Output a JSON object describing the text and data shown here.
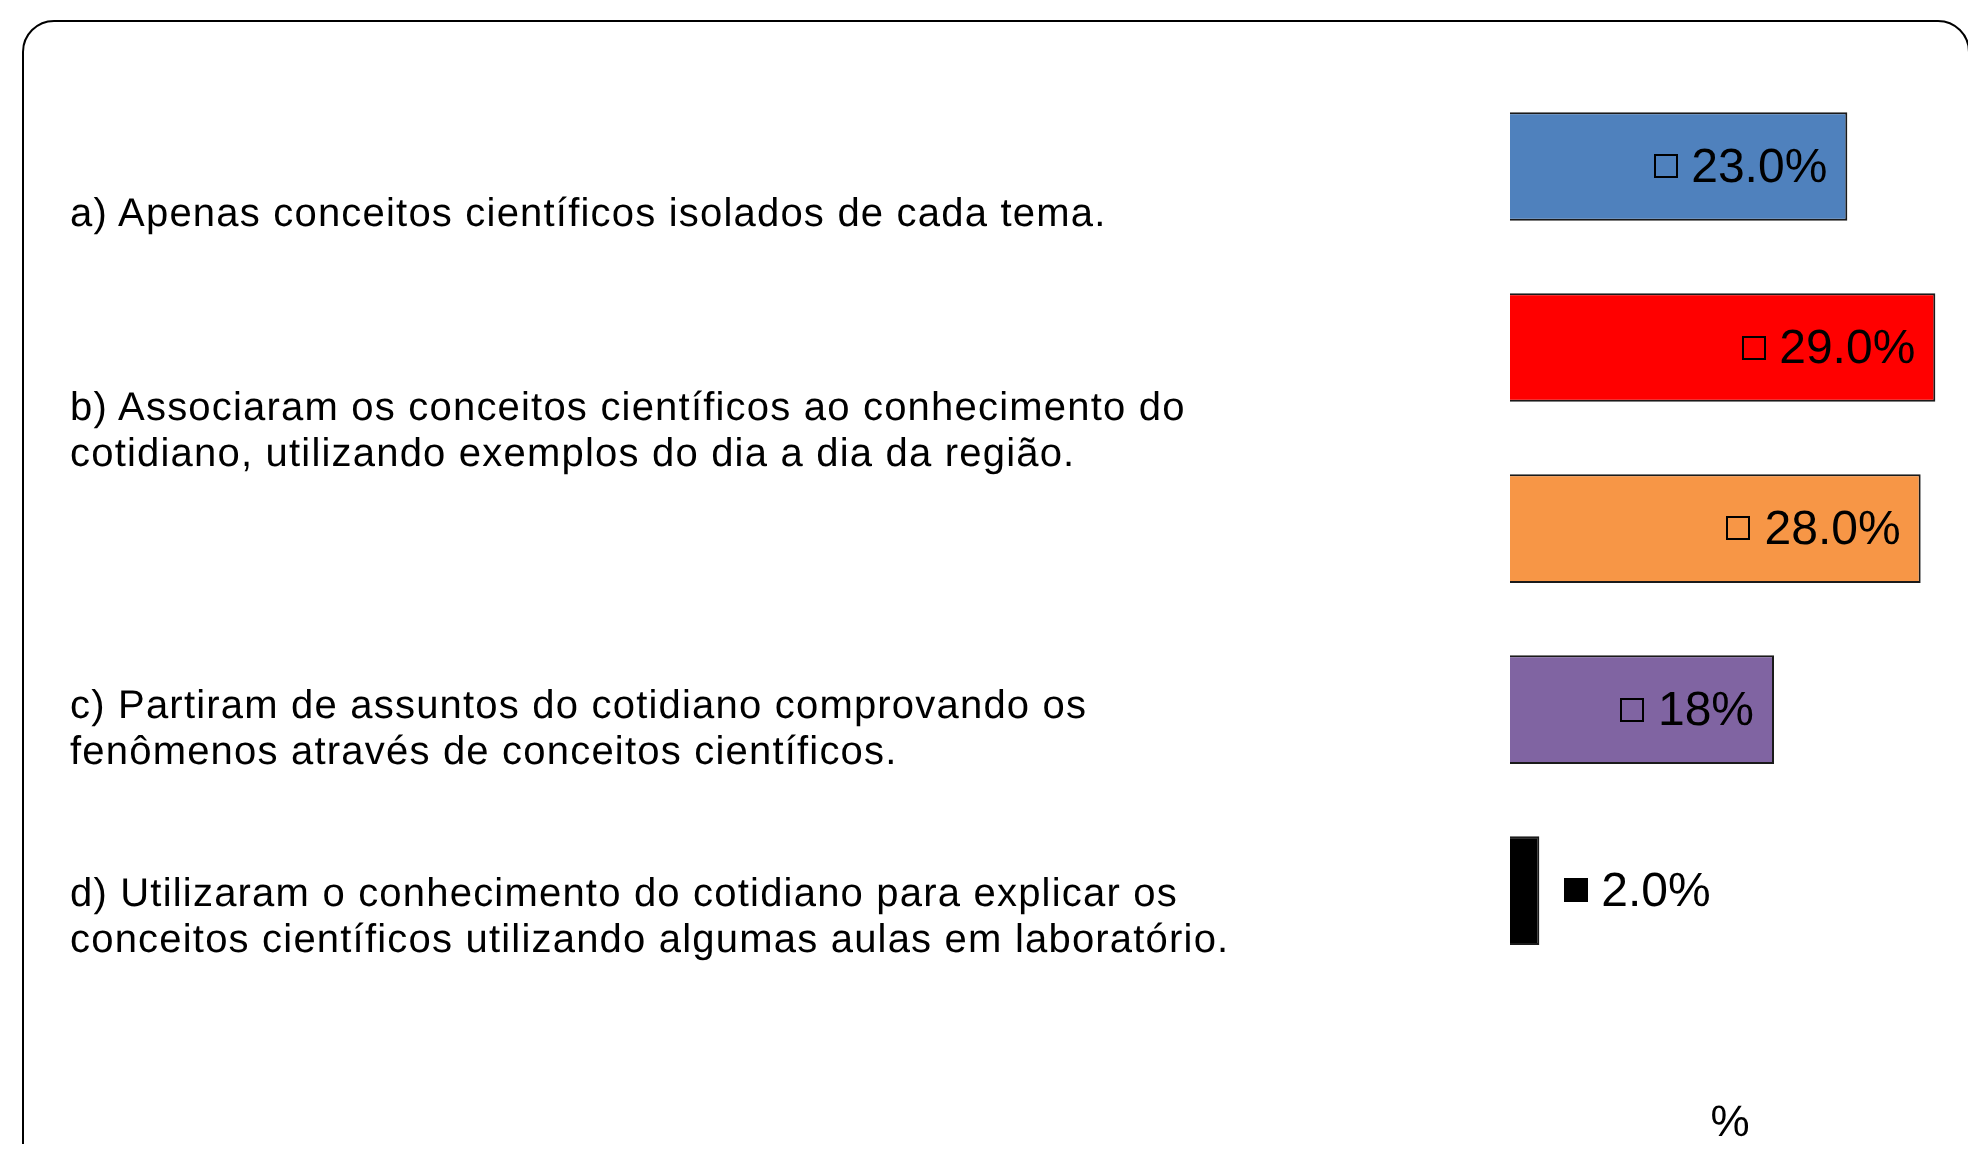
{
  "chart_data": {
    "type": "bar",
    "orientation": "horizontal",
    "xlabel": "%",
    "categories": [
      null,
      null,
      null,
      null,
      null
    ],
    "values": [
      23,
      29,
      28,
      18,
      2
    ],
    "colors": [
      "#4f81bd",
      "#ff0000",
      "#f79646",
      "#8064a2",
      "#000000"
    ],
    "value_labels": [
      "23.0%",
      "29.0%",
      "28.0%",
      "18%",
      "2.0%"
    ],
    "legend": false,
    "annotations": [
      "a) Apenas conceitos científicos isolados de cada tema.",
      "b) Associaram os conceitos científicos ao conhecimento do cotidiano, utilizando exemplos do dia a dia da região.",
      "c) Partiram de assuntos do cotidiano comprovando os fenômenos através de conceitos científicos.",
      "d) Utilizaram o conhecimento do cotidiano para explicar os conceitos científicos utilizando algumas aulas em laboratório."
    ]
  }
}
